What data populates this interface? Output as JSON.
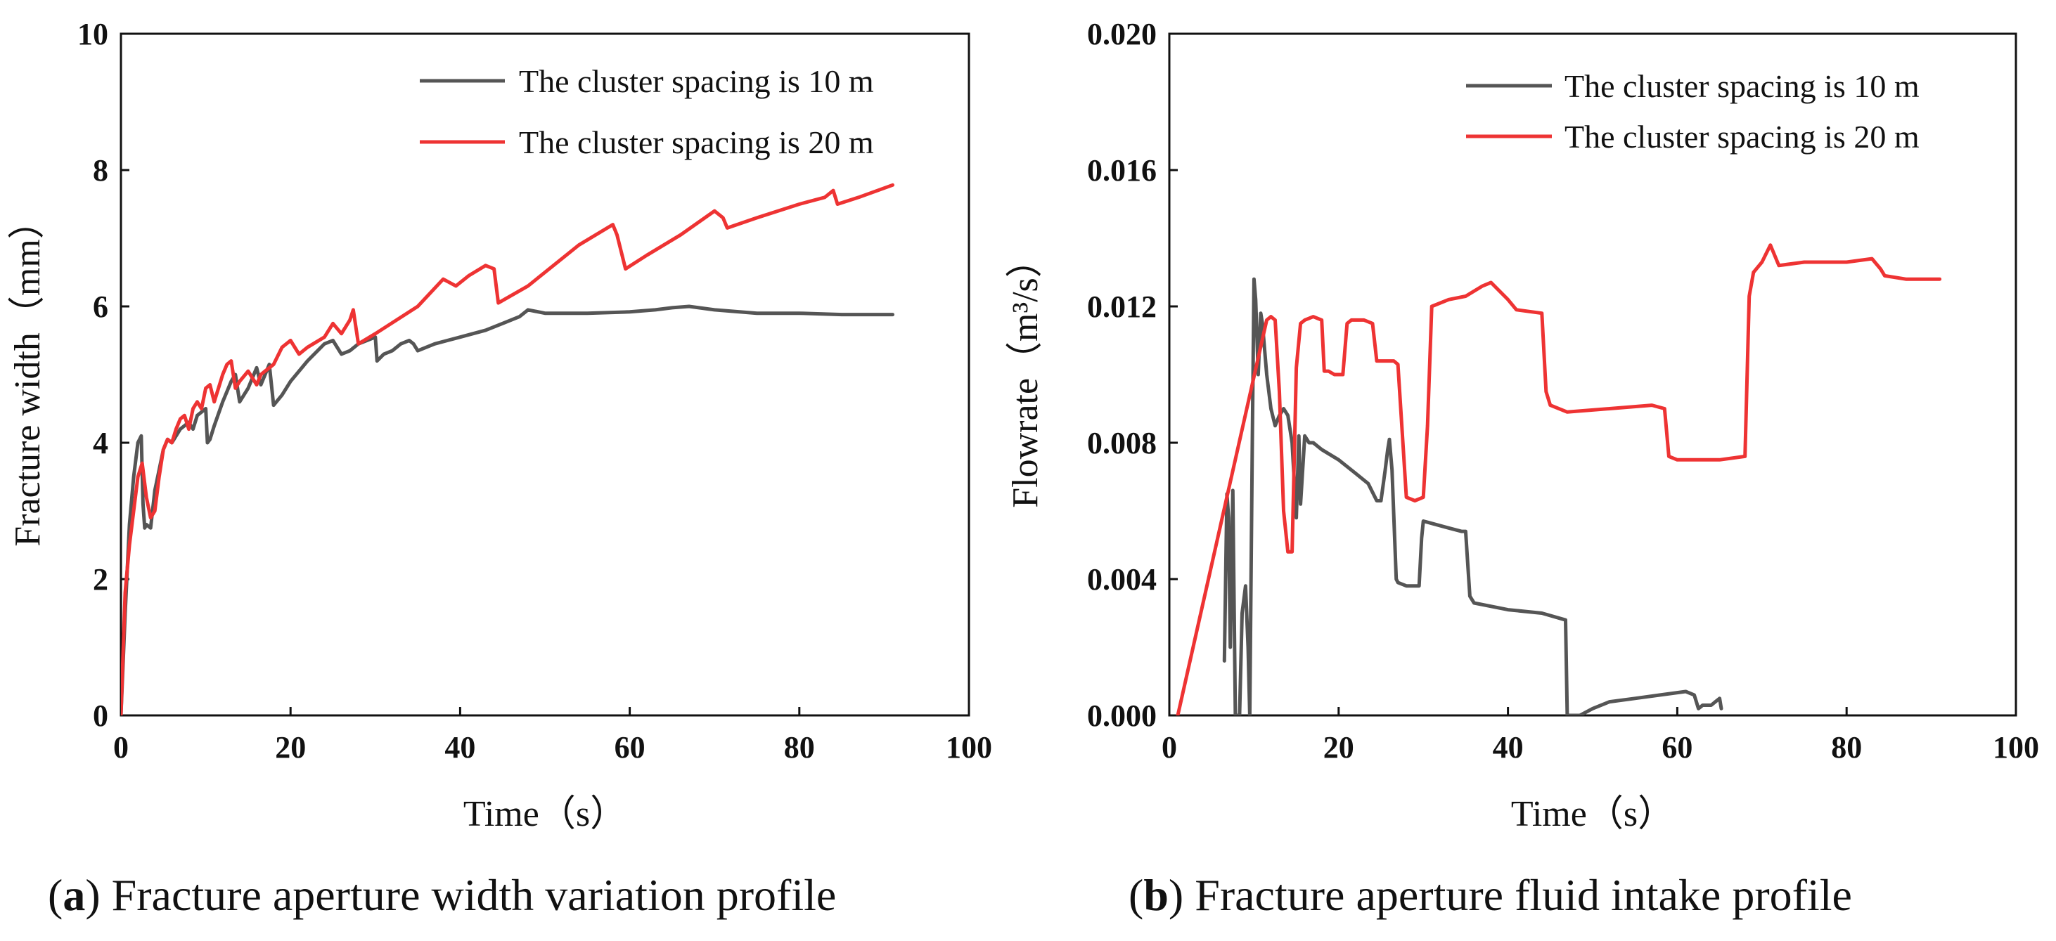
{
  "chart_data": [
    {
      "id": "a",
      "type": "line",
      "xlabel": "Time（s）",
      "ylabel": "Fracture width（mm）",
      "xlim": [
        0,
        100
      ],
      "ylim": [
        0,
        10
      ],
      "xticks": [
        0,
        20,
        40,
        60,
        80,
        100
      ],
      "yticks": [
        0,
        2,
        4,
        6,
        8,
        10
      ],
      "xtick_labels": [
        "0",
        "20",
        "40",
        "60",
        "80",
        "100"
      ],
      "ytick_labels": [
        "0",
        "2",
        "4",
        "6",
        "8",
        "10"
      ],
      "grid": false,
      "legend_position": "top-right",
      "caption_letter": "a",
      "caption_text": " Fracture aperture width variation profile",
      "series": [
        {
          "name": "The cluster spacing is 10 m",
          "color": "#555555",
          "x": [
            0,
            0.5,
            1.0,
            1.5,
            2.0,
            2.4,
            2.6,
            2.8,
            3.0,
            3.5,
            4.0,
            4.5,
            5.0,
            5.5,
            6.0,
            6.5,
            7.0,
            7.5,
            8.0,
            8.5,
            9.0,
            9.5,
            10.0,
            10.2,
            10.5,
            11.0,
            12.0,
            13.0,
            13.5,
            14.0,
            15.0,
            16.0,
            16.5,
            17.0,
            17.5,
            18.0,
            19.0,
            20.0,
            22.0,
            24.0,
            25.0,
            26.0,
            27.0,
            28.0,
            29.0,
            30.0,
            30.2,
            31.0,
            32.0,
            33.0,
            34.0,
            34.5,
            35.0,
            37.0,
            40.0,
            43.0,
            45.0,
            47.0,
            48.0,
            50.0,
            55.0,
            60.0,
            63.0,
            65.0,
            67.0,
            70.0,
            75.0,
            80.0,
            85.0,
            91.0
          ],
          "y": [
            0,
            1.5,
            2.8,
            3.5,
            4.0,
            4.1,
            3.1,
            2.75,
            2.8,
            2.75,
            3.3,
            3.6,
            3.9,
            4.05,
            4.0,
            4.1,
            4.2,
            4.25,
            4.3,
            4.2,
            4.4,
            4.45,
            4.5,
            4.0,
            4.05,
            4.25,
            4.6,
            4.9,
            5.0,
            4.6,
            4.8,
            5.1,
            4.85,
            5.0,
            5.15,
            4.55,
            4.7,
            4.9,
            5.2,
            5.45,
            5.5,
            5.3,
            5.35,
            5.45,
            5.5,
            5.55,
            5.2,
            5.3,
            5.35,
            5.45,
            5.5,
            5.45,
            5.35,
            5.45,
            5.55,
            5.65,
            5.75,
            5.85,
            5.95,
            5.9,
            5.9,
            5.92,
            5.95,
            5.98,
            6.0,
            5.95,
            5.9,
            5.9,
            5.88,
            5.88
          ]
        },
        {
          "name": "The cluster spacing is 20 m",
          "color": "#ee3333",
          "x": [
            0,
            0.5,
            1.0,
            1.5,
            2.0,
            2.5,
            3.0,
            3.5,
            4.0,
            4.5,
            5.0,
            5.5,
            6.0,
            6.5,
            7.0,
            7.5,
            8.0,
            8.5,
            9.0,
            9.5,
            10.0,
            10.5,
            11.0,
            11.5,
            12.0,
            12.5,
            13.0,
            13.5,
            14.0,
            15.0,
            16.0,
            16.5,
            17.0,
            18.0,
            19.0,
            20.0,
            21.0,
            22.0,
            24.0,
            25.0,
            26.0,
            27.0,
            27.4,
            28.0,
            30.0,
            35.0,
            38.0,
            39.5,
            41.0,
            43.0,
            44.0,
            44.5,
            48.0,
            54.0,
            58.0,
            58.5,
            59.5,
            62.0,
            66.0,
            70.0,
            71.0,
            71.5,
            75.0,
            80.0,
            83.0,
            84.0,
            84.5,
            87.0,
            91.0
          ],
          "y": [
            0,
            1.8,
            2.5,
            3.0,
            3.5,
            3.7,
            3.2,
            2.9,
            3.0,
            3.5,
            3.9,
            4.05,
            4.0,
            4.2,
            4.35,
            4.4,
            4.2,
            4.5,
            4.6,
            4.5,
            4.8,
            4.85,
            4.6,
            4.8,
            5.0,
            5.15,
            5.2,
            4.8,
            4.9,
            5.05,
            4.85,
            5.0,
            5.05,
            5.15,
            5.4,
            5.5,
            5.3,
            5.4,
            5.55,
            5.75,
            5.6,
            5.8,
            5.95,
            5.45,
            5.6,
            6.0,
            6.4,
            6.3,
            6.45,
            6.6,
            6.55,
            6.05,
            6.3,
            6.9,
            7.2,
            7.05,
            6.55,
            6.75,
            7.05,
            7.4,
            7.3,
            7.15,
            7.3,
            7.5,
            7.6,
            7.7,
            7.5,
            7.6,
            7.78
          ]
        }
      ]
    },
    {
      "id": "b",
      "type": "line",
      "xlabel": "Time（s）",
      "ylabel": "Flowrate（m³/s）",
      "xlim": [
        0,
        100
      ],
      "ylim": [
        0,
        0.02
      ],
      "xticks": [
        0,
        20,
        40,
        60,
        80,
        100
      ],
      "yticks": [
        0,
        0.004,
        0.008,
        0.012,
        0.016,
        0.02
      ],
      "xtick_labels": [
        "0",
        "20",
        "40",
        "60",
        "80",
        "100"
      ],
      "ytick_labels": [
        "0.000",
        "0.004",
        "0.008",
        "0.012",
        "0.016",
        "0.020"
      ],
      "grid": false,
      "legend_position": "top-right",
      "caption_letter": "b",
      "caption_text": " Fracture aperture fluid intake profile",
      "series": [
        {
          "name": "The cluster spacing is 10 m",
          "color": "#555555",
          "x": [
            6.5,
            6.8,
            7.0,
            7.2,
            7.5,
            7.8,
            8.0,
            8.3,
            8.6,
            9.0,
            9.3,
            9.5,
            9.8,
            10.0,
            10.2,
            10.5,
            10.8,
            11.0,
            11.5,
            12.0,
            12.5,
            13.0,
            13.5,
            14.0,
            14.5,
            15.0,
            15.3,
            15.5,
            16.0,
            16.5,
            17.0,
            18.0,
            20.0,
            22.0,
            23.5,
            24.5,
            25.0,
            25.5,
            25.8,
            26.0,
            26.3,
            26.8,
            27.0,
            28.0,
            29.5,
            29.8,
            30.0,
            33.0,
            34.5,
            35.0,
            35.5,
            36.0,
            40.0,
            44.0,
            46.8,
            47.0,
            48.5,
            50.0,
            52.0,
            55.0,
            58.0,
            61.0,
            62.0,
            62.5,
            63.0,
            64.0,
            64.5,
            65.0,
            65.2
          ],
          "y": [
            0.0016,
            0.0065,
            0.0058,
            0.002,
            0.0066,
            0.0,
            0.0,
            0.0,
            0.003,
            0.0038,
            0.002,
            0.0,
            0.008,
            0.0128,
            0.0122,
            0.01,
            0.0118,
            0.0115,
            0.01,
            0.009,
            0.0085,
            0.0088,
            0.009,
            0.0088,
            0.008,
            0.0058,
            0.0082,
            0.0062,
            0.0082,
            0.008,
            0.008,
            0.0078,
            0.0075,
            0.0071,
            0.0068,
            0.0063,
            0.0063,
            0.0072,
            0.0078,
            0.0081,
            0.0072,
            0.004,
            0.0039,
            0.0038,
            0.0038,
            0.0052,
            0.0057,
            0.0055,
            0.0054,
            0.0054,
            0.0035,
            0.0033,
            0.0031,
            0.003,
            0.0028,
            0.0,
            0.0,
            0.0002,
            0.0004,
            0.0005,
            0.0006,
            0.0007,
            0.0006,
            0.0002,
            0.0003,
            0.0003,
            0.0004,
            0.0005,
            0.0002
          ]
        },
        {
          "name": "The cluster spacing is 20 m",
          "color": "#ee3333",
          "x": [
            1.0,
            11.5,
            12.0,
            12.5,
            13.0,
            13.5,
            14.0,
            14.5,
            15.0,
            15.5,
            16.0,
            17.0,
            18.0,
            18.3,
            18.8,
            19.5,
            20.5,
            21.0,
            21.5,
            23.0,
            24.0,
            24.5,
            25.0,
            26.0,
            26.5,
            27.0,
            28.0,
            29.0,
            30.0,
            30.5,
            31.0,
            33.0,
            35.0,
            37.0,
            38.0,
            40.0,
            41.0,
            44.0,
            44.5,
            45.0,
            47.0,
            52.0,
            57.0,
            58.5,
            59.0,
            60.0,
            65.0,
            68.0,
            68.5,
            69.0,
            70.0,
            71.0,
            72.0,
            75.0,
            80.0,
            83.0,
            84.0,
            84.5,
            87.0,
            91.0
          ],
          "y": [
            0.0,
            0.0116,
            0.0117,
            0.0116,
            0.0095,
            0.006,
            0.0048,
            0.0048,
            0.0102,
            0.0115,
            0.0116,
            0.0117,
            0.0116,
            0.0101,
            0.0101,
            0.01,
            0.01,
            0.0115,
            0.0116,
            0.0116,
            0.0115,
            0.0104,
            0.0104,
            0.0104,
            0.0104,
            0.0103,
            0.0064,
            0.0063,
            0.0064,
            0.0085,
            0.012,
            0.0122,
            0.0123,
            0.0126,
            0.0127,
            0.0122,
            0.0119,
            0.0118,
            0.0095,
            0.0091,
            0.0089,
            0.009,
            0.0091,
            0.009,
            0.0076,
            0.0075,
            0.0075,
            0.0076,
            0.0123,
            0.013,
            0.0133,
            0.0138,
            0.0132,
            0.0133,
            0.0133,
            0.0134,
            0.0131,
            0.0129,
            0.0128,
            0.0128
          ]
        }
      ]
    }
  ]
}
